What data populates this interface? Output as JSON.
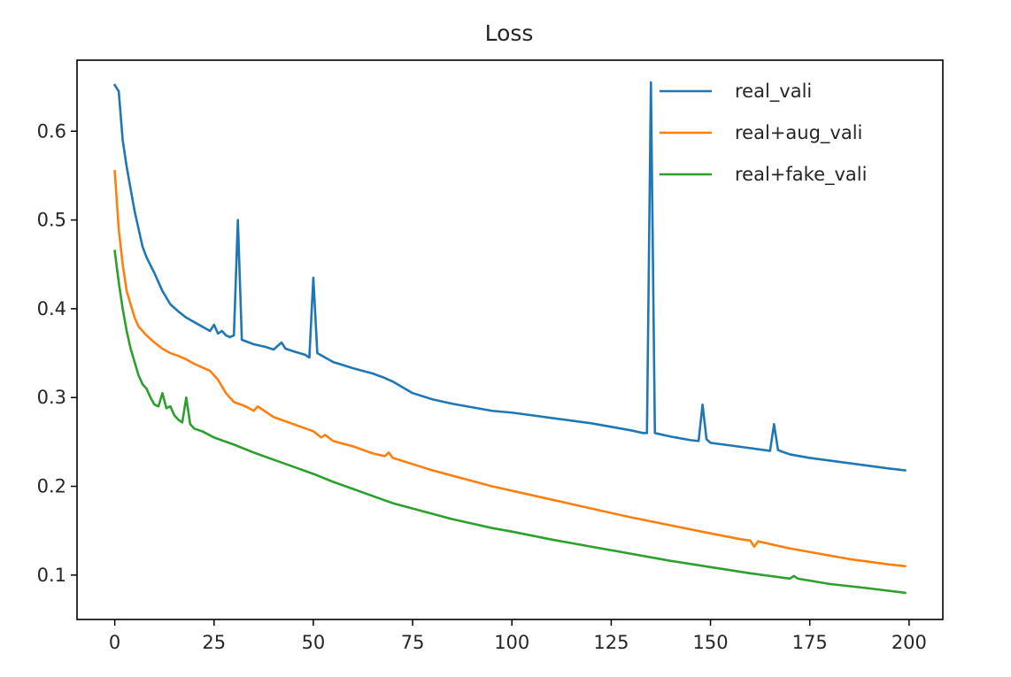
{
  "chart_data": {
    "type": "line",
    "title": "Loss",
    "xlabel": "",
    "ylabel": "",
    "xlim": [
      -9.5,
      208.5
    ],
    "ylim": [
      0.05,
      0.68
    ],
    "x_ticks": [
      0,
      25,
      50,
      75,
      100,
      125,
      150,
      175,
      200
    ],
    "x_tick_labels": [
      "0",
      "25",
      "50",
      "75",
      "100",
      "125",
      "150",
      "175",
      "200"
    ],
    "y_ticks": [
      0.1,
      0.2,
      0.3,
      0.4,
      0.5,
      0.6
    ],
    "y_tick_labels": [
      "0.1",
      "0.2",
      "0.3",
      "0.4",
      "0.5",
      "0.6"
    ],
    "grid": false,
    "legend_position": "top-right",
    "series": [
      {
        "name": "real_vali",
        "color": "#1f77b4",
        "x": [
          0,
          1,
          2,
          3,
          4,
          5,
          6,
          7,
          8,
          10,
          12,
          14,
          16,
          18,
          20,
          22,
          24,
          25,
          26,
          27,
          28,
          29,
          30,
          31,
          32,
          35,
          38,
          40,
          42,
          43,
          45,
          48,
          49,
          50,
          51,
          55,
          60,
          65,
          68,
          70,
          75,
          80,
          85,
          90,
          95,
          100,
          105,
          110,
          115,
          120,
          125,
          130,
          133,
          134,
          135,
          136,
          140,
          145,
          147,
          148,
          149,
          150,
          155,
          160,
          165,
          166,
          167,
          168,
          170,
          175,
          180,
          185,
          190,
          195,
          199
        ],
        "y": [
          0.652,
          0.645,
          0.59,
          0.56,
          0.535,
          0.51,
          0.49,
          0.47,
          0.458,
          0.44,
          0.42,
          0.405,
          0.397,
          0.39,
          0.385,
          0.38,
          0.375,
          0.382,
          0.372,
          0.375,
          0.37,
          0.368,
          0.37,
          0.5,
          0.365,
          0.36,
          0.357,
          0.354,
          0.362,
          0.355,
          0.352,
          0.348,
          0.345,
          0.435,
          0.35,
          0.34,
          0.333,
          0.327,
          0.322,
          0.318,
          0.305,
          0.298,
          0.293,
          0.289,
          0.285,
          0.283,
          0.28,
          0.277,
          0.274,
          0.271,
          0.267,
          0.263,
          0.26,
          0.26,
          0.655,
          0.26,
          0.256,
          0.252,
          0.251,
          0.292,
          0.253,
          0.249,
          0.246,
          0.243,
          0.24,
          0.27,
          0.241,
          0.239,
          0.236,
          0.232,
          0.229,
          0.226,
          0.223,
          0.22,
          0.218
        ]
      },
      {
        "name": "real+aug_vali",
        "color": "#ff7f0e",
        "x": [
          0,
          1,
          2,
          3,
          4,
          5,
          6,
          7,
          8,
          10,
          12,
          14,
          16,
          18,
          20,
          22,
          24,
          26,
          28,
          30,
          33,
          35,
          36,
          40,
          45,
          50,
          52,
          53,
          55,
          60,
          65,
          68,
          69,
          70,
          75,
          80,
          85,
          90,
          95,
          100,
          110,
          120,
          130,
          140,
          150,
          158,
          160,
          161,
          162,
          165,
          170,
          175,
          180,
          185,
          190,
          195,
          199
        ],
        "y": [
          0.555,
          0.49,
          0.45,
          0.42,
          0.405,
          0.39,
          0.38,
          0.375,
          0.37,
          0.362,
          0.355,
          0.35,
          0.347,
          0.343,
          0.338,
          0.334,
          0.33,
          0.32,
          0.305,
          0.295,
          0.29,
          0.285,
          0.29,
          0.278,
          0.27,
          0.262,
          0.255,
          0.258,
          0.251,
          0.245,
          0.237,
          0.234,
          0.238,
          0.232,
          0.225,
          0.218,
          0.212,
          0.206,
          0.2,
          0.195,
          0.185,
          0.175,
          0.165,
          0.156,
          0.147,
          0.14,
          0.139,
          0.132,
          0.138,
          0.135,
          0.13,
          0.126,
          0.122,
          0.118,
          0.115,
          0.112,
          0.11
        ]
      },
      {
        "name": "real+fake_vali",
        "color": "#2ca02c",
        "x": [
          0,
          1,
          2,
          3,
          4,
          5,
          6,
          7,
          8,
          9,
          10,
          11,
          12,
          13,
          14,
          15,
          16,
          17,
          18,
          19,
          20,
          22,
          25,
          30,
          35,
          40,
          45,
          50,
          55,
          60,
          65,
          70,
          75,
          80,
          85,
          90,
          95,
          100,
          110,
          120,
          130,
          140,
          150,
          160,
          170,
          171,
          172,
          180,
          190,
          199
        ],
        "y": [
          0.465,
          0.43,
          0.4,
          0.375,
          0.355,
          0.34,
          0.325,
          0.315,
          0.31,
          0.3,
          0.292,
          0.29,
          0.305,
          0.288,
          0.29,
          0.28,
          0.275,
          0.272,
          0.3,
          0.27,
          0.265,
          0.262,
          0.255,
          0.247,
          0.238,
          0.23,
          0.222,
          0.214,
          0.205,
          0.197,
          0.189,
          0.181,
          0.175,
          0.169,
          0.163,
          0.158,
          0.153,
          0.149,
          0.14,
          0.132,
          0.124,
          0.116,
          0.109,
          0.102,
          0.096,
          0.099,
          0.096,
          0.09,
          0.085,
          0.08
        ]
      }
    ]
  }
}
